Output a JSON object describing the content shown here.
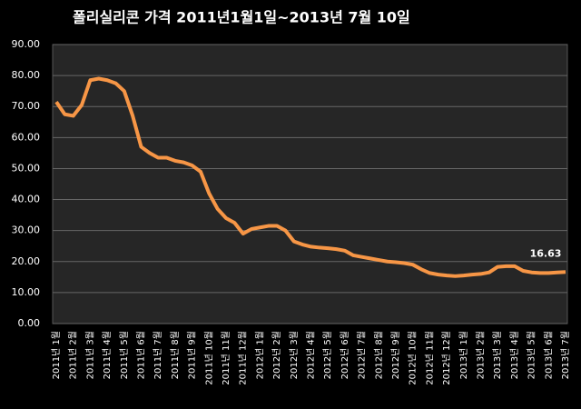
{
  "chart_data": {
    "type": "line",
    "title": "폴리실리콘 가격    2011년1월1일~2013년 7월 10일",
    "categories": [
      "2011년 1월",
      null,
      "2011년 2월",
      null,
      "2011년 3월",
      null,
      "2011년 4월",
      null,
      "2011년 5월",
      null,
      "2011년 6월",
      null,
      "2011년 7월",
      null,
      "2011년 8월",
      null,
      "2011년 9월",
      null,
      "2011년 10월",
      null,
      "2011년 11월",
      null,
      "2011년 12월",
      null,
      "2012년 1월",
      null,
      "2012년 2월",
      null,
      "2012년 3월",
      null,
      "2012년 4월",
      null,
      "2012년 5월",
      null,
      "2012년 6월",
      null,
      "2012년 7월",
      null,
      "2012년 8월",
      null,
      "2012년 9월",
      null,
      "2012년 10월",
      null,
      "2012년 11월",
      null,
      "2012년 12월",
      null,
      "2013년 1월",
      null,
      "2013년 2월",
      null,
      "2013년 3월",
      null,
      "2013년 4월",
      null,
      "2013년 5월",
      null,
      "2013년 6월",
      null,
      "2013년 7월"
    ],
    "series": [
      {
        "color": "#f79646",
        "values": [
          71.5,
          67.5,
          67,
          70.5,
          78.5,
          79,
          78.5,
          77.5,
          75,
          67,
          57,
          55,
          53.5,
          53.5,
          52.5,
          52,
          51,
          49,
          42,
          37,
          34,
          32.5,
          29,
          30.5,
          31,
          31.5,
          31.5,
          30,
          26.5,
          25.5,
          24.8,
          24.5,
          24.3,
          24,
          23.5,
          22,
          21.5,
          21,
          20.5,
          20,
          19.8,
          19.5,
          19,
          17.5,
          16.3,
          15.8,
          15.5,
          15.3,
          15.5,
          15.8,
          16,
          16.5,
          18.3,
          18.5,
          18.5,
          17,
          16.5,
          16.3,
          16.3,
          16.5,
          16.63
        ],
        "value_labels": [
          null,
          null,
          null,
          null,
          null,
          null,
          null,
          null,
          null,
          null,
          null,
          null,
          null,
          null,
          null,
          null,
          null,
          null,
          null,
          null,
          null,
          null,
          null,
          null,
          null,
          null,
          null,
          null,
          null,
          null,
          null,
          null,
          null,
          null,
          null,
          null,
          null,
          null,
          null,
          null,
          null,
          null,
          null,
          null,
          null,
          null,
          null,
          null,
          null,
          null,
          null,
          null,
          null,
          null,
          null,
          null,
          null,
          null,
          null,
          null,
          "16.63"
        ]
      }
    ],
    "ylim": [
      0,
      90
    ],
    "yticks": [
      {
        "value": 0,
        "label": "0.00"
      },
      {
        "value": 10,
        "label": "10.00"
      },
      {
        "value": 20,
        "label": "20.00"
      },
      {
        "value": 30,
        "label": "30.00"
      },
      {
        "value": 40,
        "label": "40.00"
      },
      {
        "value": 50,
        "label": "50.00"
      },
      {
        "value": 60,
        "label": "60.00"
      },
      {
        "value": 70,
        "label": "70.00"
      },
      {
        "value": 80,
        "label": "80.00"
      },
      {
        "value": 90,
        "label": "90.00"
      }
    ],
    "grid": true
  }
}
